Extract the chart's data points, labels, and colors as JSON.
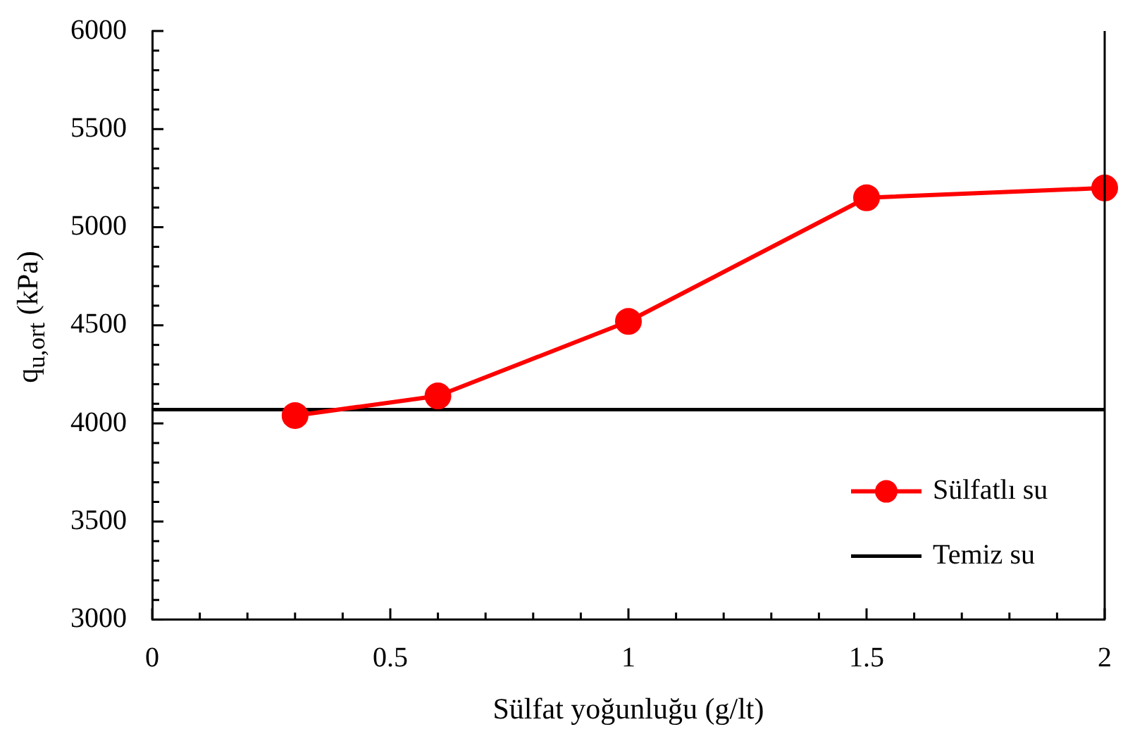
{
  "chart_data": {
    "type": "line",
    "xlabel": "Sülfat yoğunluğu (g/lt)",
    "ylabel": "q$_{u,ort}$ (kPa)",
    "xlim": [
      0,
      2
    ],
    "xticks": [
      0,
      {
        "value": 0.1,
        "label": null
      },
      {
        "value": 0.2,
        "label": null
      },
      {
        "value": 0.3,
        "label": null
      },
      {
        "value": 0.4,
        "label": null
      },
      0.5,
      {
        "value": 0.6,
        "label": null
      },
      {
        "value": 0.7,
        "label": null
      },
      {
        "value": 0.8,
        "label": null
      },
      {
        "value": 0.9,
        "label": null
      },
      1,
      {
        "value": 1.1,
        "label": null
      },
      {
        "value": 1.2,
        "label": null
      },
      {
        "value": 1.3,
        "label": null
      },
      {
        "value": 1.4,
        "label": null
      },
      1.5,
      {
        "value": 1.6,
        "label": null
      },
      {
        "value": 1.7,
        "label": null
      },
      {
        "value": 1.8,
        "label": null
      },
      {
        "value": 1.9,
        "label": null
      },
      2
    ],
    "ylim": [
      3000,
      6000
    ],
    "yticks": [
      3000,
      {
        "value": 3100,
        "label": null
      },
      {
        "value": 3200,
        "label": null
      },
      {
        "value": 3300,
        "label": null
      },
      {
        "value": 3400,
        "label": null
      },
      3500,
      {
        "value": 3600,
        "label": null
      },
      {
        "value": 3700,
        "label": null
      },
      {
        "value": 3800,
        "label": null
      },
      {
        "value": 3900,
        "label": null
      },
      4000,
      {
        "value": 4100,
        "label": null
      },
      {
        "value": 4200,
        "label": null
      },
      {
        "value": 4300,
        "label": null
      },
      {
        "value": 4400,
        "label": null
      },
      4500,
      {
        "value": 4600,
        "label": null
      },
      {
        "value": 4700,
        "label": null
      },
      {
        "value": 4800,
        "label": null
      },
      {
        "value": 4900,
        "label": null
      },
      5000,
      {
        "value": 5100,
        "label": null
      },
      {
        "value": 5200,
        "label": null
      },
      {
        "value": 5300,
        "label": null
      },
      {
        "value": 5400,
        "label": null
      },
      5500,
      {
        "value": 5600,
        "label": null
      },
      {
        "value": 5700,
        "label": null
      },
      {
        "value": 5800,
        "label": null
      },
      {
        "value": 5900,
        "label": null
      },
      6000
    ],
    "grid": false,
    "legend": "bottom right",
    "marker": "circle",
    "line_style": "solid",
    "series": [
      {
        "name": "Sülfatlı su",
        "color": "#ff0000",
        "x": [
          0.3,
          0.6,
          1,
          1.5,
          2
        ],
        "values": [
          4040,
          4140,
          4520,
          5150,
          5200
        ]
      },
      {
        "name": "Temiz su",
        "color": "#000000",
        "marker": "none",
        "x": [
          0,
          2
        ],
        "values": [
          4070,
          4070
        ]
      }
    ]
  }
}
